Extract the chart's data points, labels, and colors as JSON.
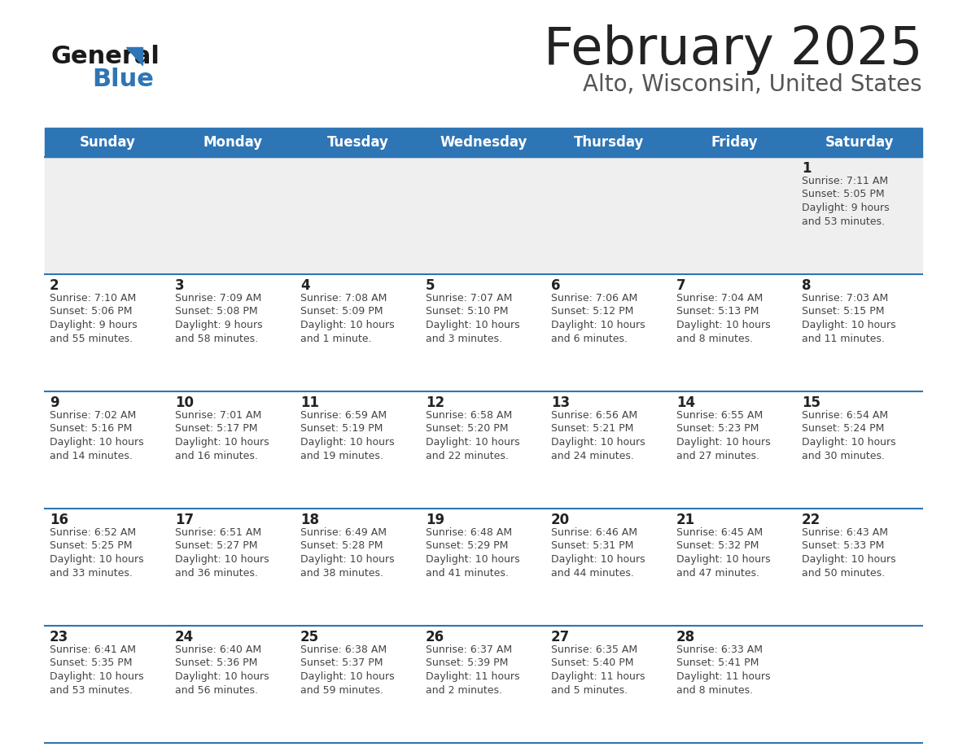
{
  "title": "February 2025",
  "subtitle": "Alto, Wisconsin, United States",
  "header_color": "#2E75B6",
  "header_text_color": "#FFFFFF",
  "day_names": [
    "Sunday",
    "Monday",
    "Tuesday",
    "Wednesday",
    "Thursday",
    "Friday",
    "Saturday"
  ],
  "grid_line_color": "#2E75B6",
  "row0_bg": "#EFEFEF",
  "row_bg": "#FFFFFF",
  "title_color": "#222222",
  "subtitle_color": "#555555",
  "day_num_color": "#222222",
  "cell_text_color": "#444444",
  "calendar": [
    [
      {
        "day": null,
        "info": null
      },
      {
        "day": null,
        "info": null
      },
      {
        "day": null,
        "info": null
      },
      {
        "day": null,
        "info": null
      },
      {
        "day": null,
        "info": null
      },
      {
        "day": null,
        "info": null
      },
      {
        "day": 1,
        "info": "Sunrise: 7:11 AM\nSunset: 5:05 PM\nDaylight: 9 hours\nand 53 minutes."
      }
    ],
    [
      {
        "day": 2,
        "info": "Sunrise: 7:10 AM\nSunset: 5:06 PM\nDaylight: 9 hours\nand 55 minutes."
      },
      {
        "day": 3,
        "info": "Sunrise: 7:09 AM\nSunset: 5:08 PM\nDaylight: 9 hours\nand 58 minutes."
      },
      {
        "day": 4,
        "info": "Sunrise: 7:08 AM\nSunset: 5:09 PM\nDaylight: 10 hours\nand 1 minute."
      },
      {
        "day": 5,
        "info": "Sunrise: 7:07 AM\nSunset: 5:10 PM\nDaylight: 10 hours\nand 3 minutes."
      },
      {
        "day": 6,
        "info": "Sunrise: 7:06 AM\nSunset: 5:12 PM\nDaylight: 10 hours\nand 6 minutes."
      },
      {
        "day": 7,
        "info": "Sunrise: 7:04 AM\nSunset: 5:13 PM\nDaylight: 10 hours\nand 8 minutes."
      },
      {
        "day": 8,
        "info": "Sunrise: 7:03 AM\nSunset: 5:15 PM\nDaylight: 10 hours\nand 11 minutes."
      }
    ],
    [
      {
        "day": 9,
        "info": "Sunrise: 7:02 AM\nSunset: 5:16 PM\nDaylight: 10 hours\nand 14 minutes."
      },
      {
        "day": 10,
        "info": "Sunrise: 7:01 AM\nSunset: 5:17 PM\nDaylight: 10 hours\nand 16 minutes."
      },
      {
        "day": 11,
        "info": "Sunrise: 6:59 AM\nSunset: 5:19 PM\nDaylight: 10 hours\nand 19 minutes."
      },
      {
        "day": 12,
        "info": "Sunrise: 6:58 AM\nSunset: 5:20 PM\nDaylight: 10 hours\nand 22 minutes."
      },
      {
        "day": 13,
        "info": "Sunrise: 6:56 AM\nSunset: 5:21 PM\nDaylight: 10 hours\nand 24 minutes."
      },
      {
        "day": 14,
        "info": "Sunrise: 6:55 AM\nSunset: 5:23 PM\nDaylight: 10 hours\nand 27 minutes."
      },
      {
        "day": 15,
        "info": "Sunrise: 6:54 AM\nSunset: 5:24 PM\nDaylight: 10 hours\nand 30 minutes."
      }
    ],
    [
      {
        "day": 16,
        "info": "Sunrise: 6:52 AM\nSunset: 5:25 PM\nDaylight: 10 hours\nand 33 minutes."
      },
      {
        "day": 17,
        "info": "Sunrise: 6:51 AM\nSunset: 5:27 PM\nDaylight: 10 hours\nand 36 minutes."
      },
      {
        "day": 18,
        "info": "Sunrise: 6:49 AM\nSunset: 5:28 PM\nDaylight: 10 hours\nand 38 minutes."
      },
      {
        "day": 19,
        "info": "Sunrise: 6:48 AM\nSunset: 5:29 PM\nDaylight: 10 hours\nand 41 minutes."
      },
      {
        "day": 20,
        "info": "Sunrise: 6:46 AM\nSunset: 5:31 PM\nDaylight: 10 hours\nand 44 minutes."
      },
      {
        "day": 21,
        "info": "Sunrise: 6:45 AM\nSunset: 5:32 PM\nDaylight: 10 hours\nand 47 minutes."
      },
      {
        "day": 22,
        "info": "Sunrise: 6:43 AM\nSunset: 5:33 PM\nDaylight: 10 hours\nand 50 minutes."
      }
    ],
    [
      {
        "day": 23,
        "info": "Sunrise: 6:41 AM\nSunset: 5:35 PM\nDaylight: 10 hours\nand 53 minutes."
      },
      {
        "day": 24,
        "info": "Sunrise: 6:40 AM\nSunset: 5:36 PM\nDaylight: 10 hours\nand 56 minutes."
      },
      {
        "day": 25,
        "info": "Sunrise: 6:38 AM\nSunset: 5:37 PM\nDaylight: 10 hours\nand 59 minutes."
      },
      {
        "day": 26,
        "info": "Sunrise: 6:37 AM\nSunset: 5:39 PM\nDaylight: 11 hours\nand 2 minutes."
      },
      {
        "day": 27,
        "info": "Sunrise: 6:35 AM\nSunset: 5:40 PM\nDaylight: 11 hours\nand 5 minutes."
      },
      {
        "day": 28,
        "info": "Sunrise: 6:33 AM\nSunset: 5:41 PM\nDaylight: 11 hours\nand 8 minutes."
      },
      {
        "day": null,
        "info": null
      }
    ]
  ]
}
